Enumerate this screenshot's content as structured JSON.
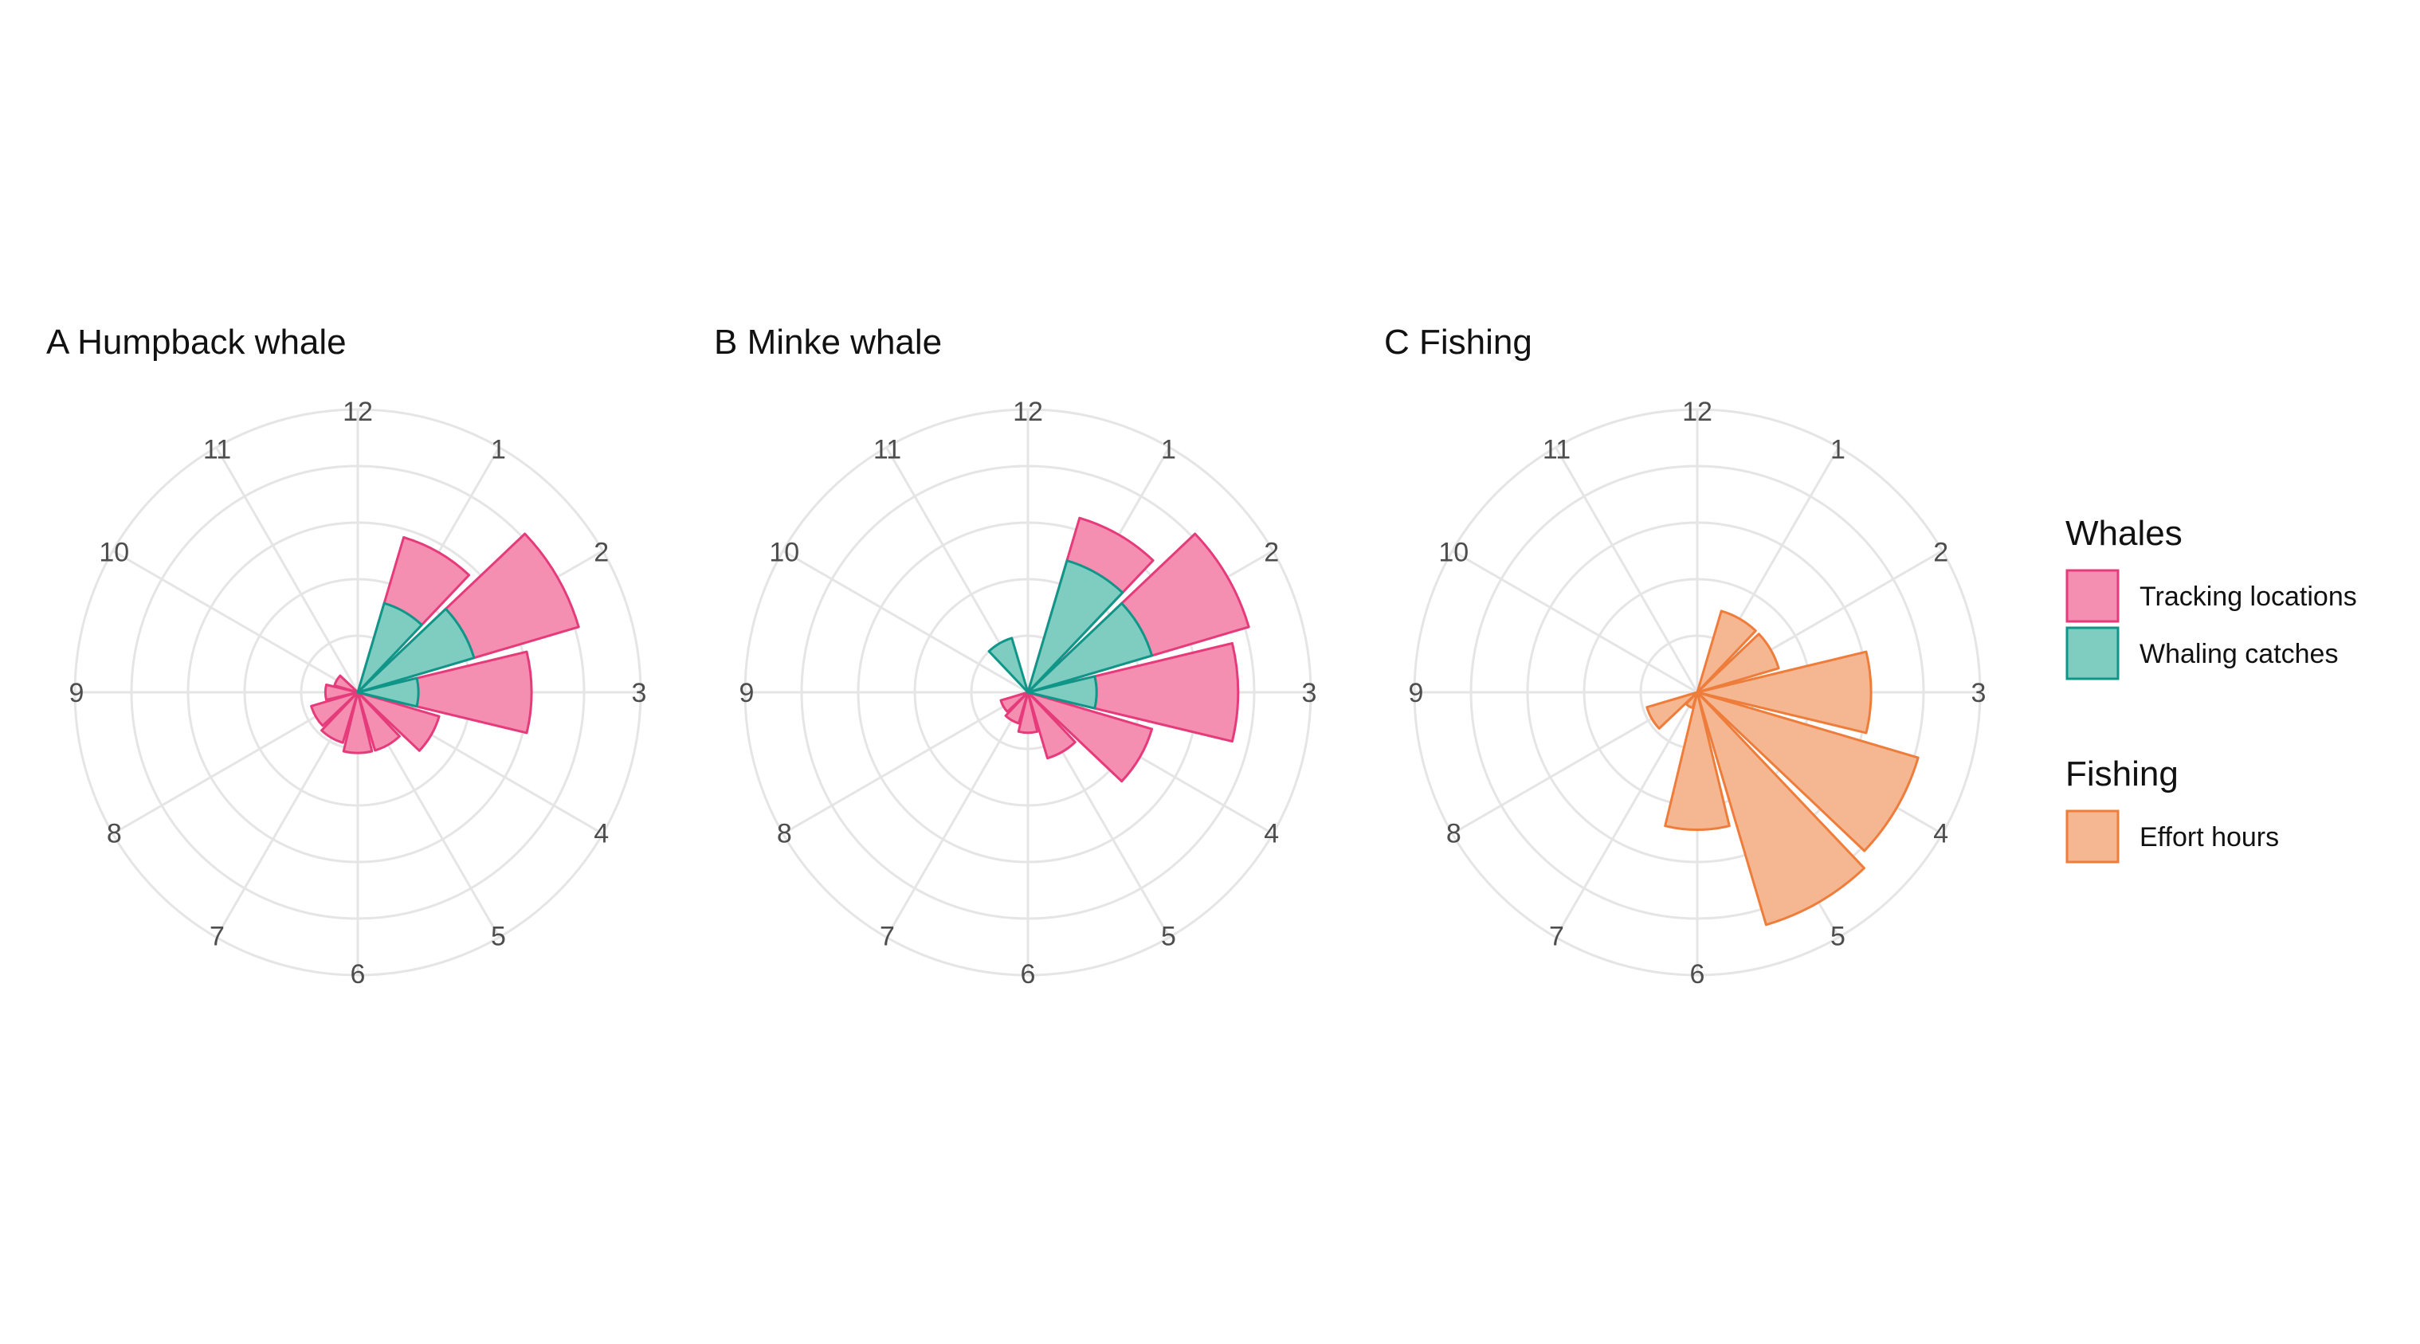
{
  "chart_data": {
    "type": "polar-bar",
    "panels": [
      {
        "title": "A Humpback whale",
        "theta_labels": [
          "12",
          "1",
          "2",
          "3",
          "4",
          "5",
          "6",
          "7",
          "8",
          "9",
          "10",
          "11"
        ],
        "r_max": 7,
        "grid": true,
        "series": [
          {
            "name": "Tracking locations",
            "values": [
              0,
              4.0,
              5.7,
              4.3,
              2.1,
              1.5,
              1.5,
              1.3,
              1.2,
              0.8,
              0.6,
              0
            ]
          },
          {
            "name": "Whaling catches",
            "values": [
              0,
              2.3,
              3.0,
              1.5,
              0,
              0,
              0,
              0,
              0,
              0,
              0,
              0
            ]
          }
        ]
      },
      {
        "title": "B Minke whale",
        "theta_labels": [
          "12",
          "1",
          "2",
          "3",
          "4",
          "5",
          "6",
          "7",
          "8",
          "9",
          "10",
          "11"
        ],
        "r_max": 7,
        "grid": true,
        "series": [
          {
            "name": "Tracking locations",
            "values": [
              0,
              4.5,
              5.7,
              5.2,
              3.2,
              1.7,
              1.0,
              0.8,
              0.7,
              0,
              0,
              0
            ]
          },
          {
            "name": "Whaling catches",
            "values": [
              0,
              3.4,
              3.2,
              1.7,
              0,
              0,
              0,
              0,
              0,
              0,
              0,
              1.4
            ]
          }
        ]
      },
      {
        "title": "C Fishing",
        "theta_labels": [
          "12",
          "1",
          "2",
          "3",
          "4",
          "5",
          "6",
          "7",
          "8",
          "9",
          "10",
          "11"
        ],
        "r_max": 7,
        "grid": true,
        "series": [
          {
            "name": "Effort hours",
            "values": [
              0,
              2.1,
              2.1,
              4.3,
              5.7,
              6.0,
              3.4,
              0.4,
              1.3,
              0,
              0,
              0
            ]
          }
        ]
      }
    ],
    "legend": {
      "placement": "right",
      "groups": [
        {
          "title": "Whales",
          "entries": [
            "Tracking locations",
            "Whaling catches"
          ]
        },
        {
          "title": "Fishing",
          "entries": [
            "Effort hours"
          ]
        }
      ]
    },
    "colors": {
      "Tracking locations": {
        "fill": "#f48fb1",
        "stroke": "#e63b7a"
      },
      "Whaling catches": {
        "fill": "#7fcdc0",
        "stroke": "#0f9688"
      },
      "Effort hours": {
        "fill": "#f5b792",
        "stroke": "#ee7d3b"
      },
      "grid": "#e5e5e5"
    }
  }
}
